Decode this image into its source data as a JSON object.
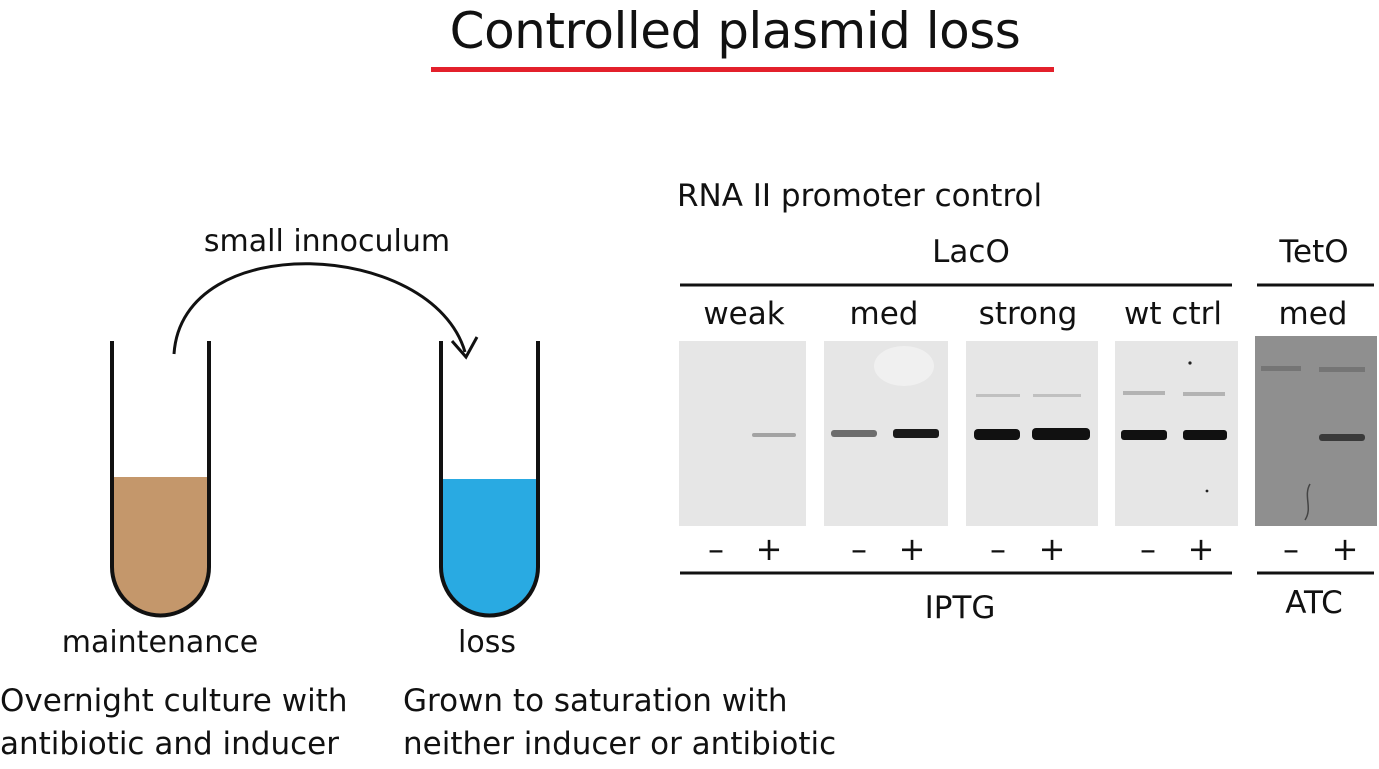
{
  "title": "Controlled plasmid loss",
  "colors": {
    "underline": "#e3202b",
    "maintenance_liquid": "#c4976b",
    "loss_liquid": "#29aae2",
    "gel_background": "#e6e6e6",
    "tet_gel_background": "#8f8f8f",
    "band": "#1a1a1a"
  },
  "diagram": {
    "arrow_label": "small innoculum",
    "tubes": [
      {
        "label": "maintenance",
        "description_line1": "Overnight culture with",
        "description_line2": "antibiotic and inducer"
      },
      {
        "label": "loss",
        "description_line1": "Grown to saturation with",
        "description_line2": "neither inducer or antibiotic"
      }
    ]
  },
  "gel": {
    "heading": "RNA II promoter control",
    "groups": [
      {
        "label": "LacO",
        "inducer": "IPTG"
      },
      {
        "label": "TetO",
        "inducer": "ATC"
      }
    ],
    "panels": [
      {
        "label": "weak",
        "minus": "–",
        "plus": "+"
      },
      {
        "label": "med",
        "minus": "–",
        "plus": "+"
      },
      {
        "label": "strong",
        "minus": "–",
        "plus": "+"
      },
      {
        "label": "wt ctrl",
        "minus": "–",
        "plus": "+"
      },
      {
        "label": "med",
        "minus": "–",
        "plus": "+"
      }
    ]
  }
}
